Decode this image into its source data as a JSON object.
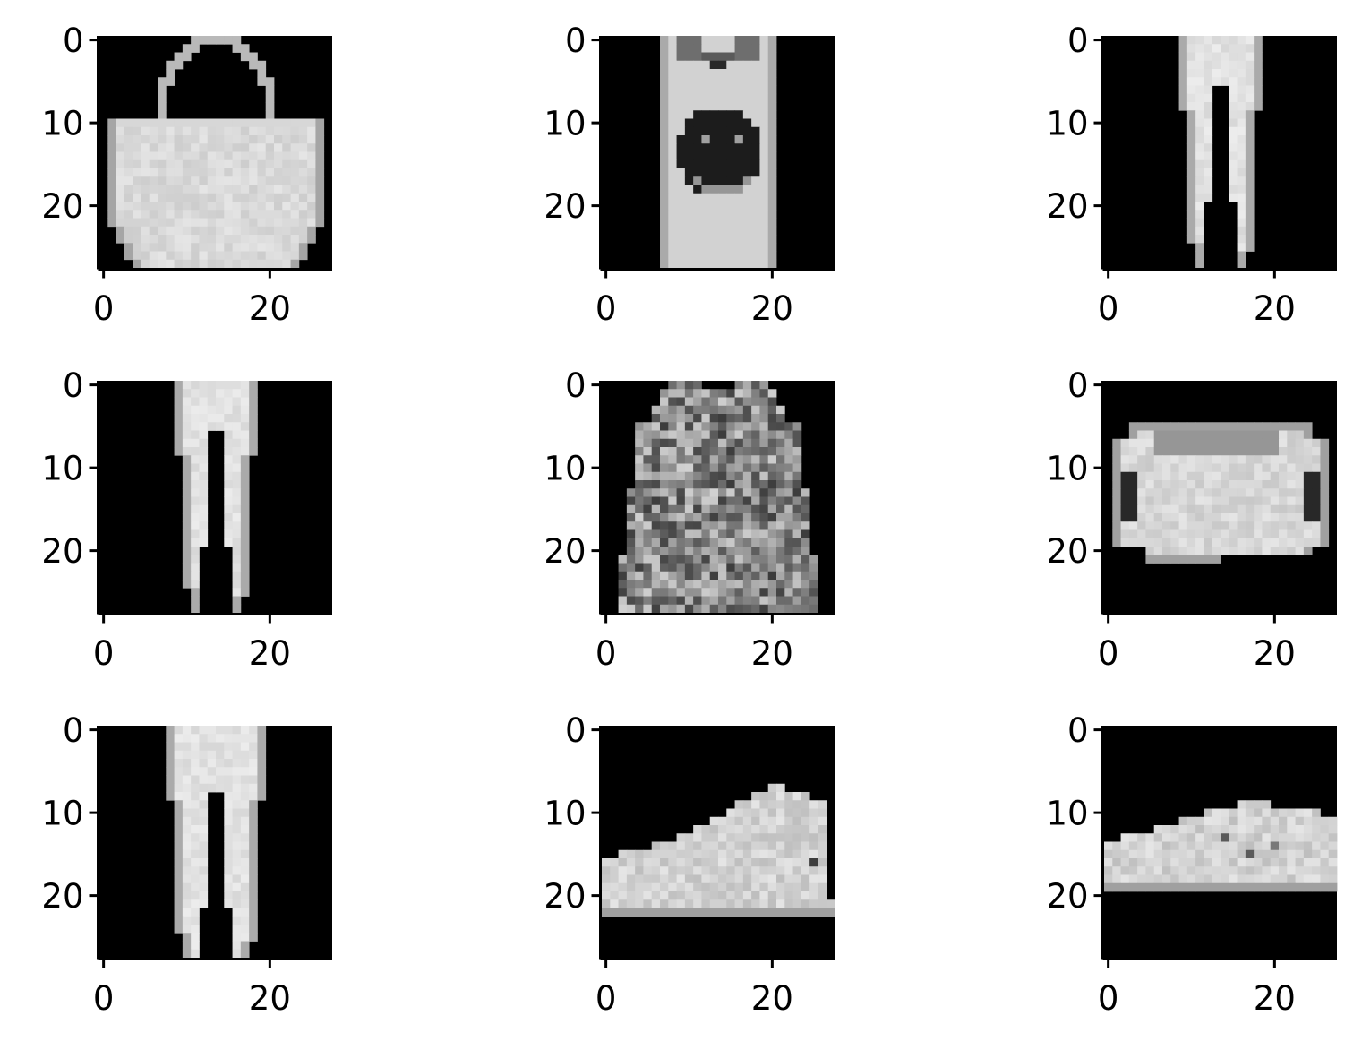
{
  "figure": {
    "background": "#ffffff",
    "colormap": "gray",
    "rows": 3,
    "cols": 3
  },
  "chart_data": [
    {
      "type": "heatmap",
      "content": "bag",
      "image_size": [
        28,
        28
      ],
      "xlim": [
        -0.5,
        27.5
      ],
      "ylim": [
        27.5,
        -0.5
      ],
      "xticks": [
        0,
        20
      ],
      "xtick_labels": [
        "0",
        "20"
      ],
      "yticks": [
        0,
        10,
        20
      ],
      "ytick_labels": [
        "0",
        "10",
        "20"
      ],
      "title": "",
      "xlabel": "",
      "ylabel": ""
    },
    {
      "type": "heatmap",
      "content": "shirt-with-smiley",
      "image_size": [
        28,
        28
      ],
      "xlim": [
        -0.5,
        27.5
      ],
      "ylim": [
        27.5,
        -0.5
      ],
      "xticks": [
        0,
        20
      ],
      "xtick_labels": [
        "0",
        "20"
      ],
      "yticks": [
        0,
        10,
        20
      ],
      "ytick_labels": [
        "0",
        "10",
        "20"
      ],
      "title": "",
      "xlabel": "",
      "ylabel": ""
    },
    {
      "type": "heatmap",
      "content": "trousers",
      "image_size": [
        28,
        28
      ],
      "xlim": [
        -0.5,
        27.5
      ],
      "ylim": [
        27.5,
        -0.5
      ],
      "xticks": [
        0,
        20
      ],
      "xtick_labels": [
        "0",
        "20"
      ],
      "yticks": [
        0,
        10,
        20
      ],
      "ytick_labels": [
        "0",
        "10",
        "20"
      ],
      "title": "",
      "xlabel": "",
      "ylabel": ""
    },
    {
      "type": "heatmap",
      "content": "trousers",
      "image_size": [
        28,
        28
      ],
      "xlim": [
        -0.5,
        27.5
      ],
      "ylim": [
        27.5,
        -0.5
      ],
      "xticks": [
        0,
        20
      ],
      "xtick_labels": [
        "0",
        "20"
      ],
      "yticks": [
        0,
        10,
        20
      ],
      "ytick_labels": [
        "0",
        "10",
        "20"
      ],
      "title": "",
      "xlabel": "",
      "ylabel": ""
    },
    {
      "type": "heatmap",
      "content": "long-sleeve-shirt",
      "image_size": [
        28,
        28
      ],
      "xlim": [
        -0.5,
        27.5
      ],
      "ylim": [
        27.5,
        -0.5
      ],
      "xticks": [
        0,
        20
      ],
      "xtick_labels": [
        "0",
        "20"
      ],
      "yticks": [
        0,
        10,
        20
      ],
      "ytick_labels": [
        "0",
        "10",
        "20"
      ],
      "title": "",
      "xlabel": "",
      "ylabel": ""
    },
    {
      "type": "heatmap",
      "content": "bag",
      "image_size": [
        28,
        28
      ],
      "xlim": [
        -0.5,
        27.5
      ],
      "ylim": [
        27.5,
        -0.5
      ],
      "xticks": [
        0,
        20
      ],
      "xtick_labels": [
        "0",
        "20"
      ],
      "yticks": [
        0,
        10,
        20
      ],
      "ytick_labels": [
        "0",
        "10",
        "20"
      ],
      "title": "",
      "xlabel": "",
      "ylabel": ""
    },
    {
      "type": "heatmap",
      "content": "trousers",
      "image_size": [
        28,
        28
      ],
      "xlim": [
        -0.5,
        27.5
      ],
      "ylim": [
        27.5,
        -0.5
      ],
      "xticks": [
        0,
        20
      ],
      "xtick_labels": [
        "0",
        "20"
      ],
      "yticks": [
        0,
        10,
        20
      ],
      "ytick_labels": [
        "0",
        "10",
        "20"
      ],
      "title": "",
      "xlabel": "",
      "ylabel": ""
    },
    {
      "type": "heatmap",
      "content": "sneaker",
      "image_size": [
        28,
        28
      ],
      "xlim": [
        -0.5,
        27.5
      ],
      "ylim": [
        27.5,
        -0.5
      ],
      "xticks": [
        0,
        20
      ],
      "xtick_labels": [
        "0",
        "20"
      ],
      "yticks": [
        0,
        10,
        20
      ],
      "ytick_labels": [
        "0",
        "10",
        "20"
      ],
      "title": "",
      "xlabel": "",
      "ylabel": ""
    },
    {
      "type": "heatmap",
      "content": "sneaker",
      "image_size": [
        28,
        28
      ],
      "xlim": [
        -0.5,
        27.5
      ],
      "ylim": [
        27.5,
        -0.5
      ],
      "xticks": [
        0,
        20
      ],
      "xtick_labels": [
        "0",
        "20"
      ],
      "yticks": [
        0,
        10,
        20
      ],
      "ytick_labels": [
        "0",
        "10",
        "20"
      ],
      "title": "",
      "xlabel": "",
      "ylabel": ""
    }
  ]
}
